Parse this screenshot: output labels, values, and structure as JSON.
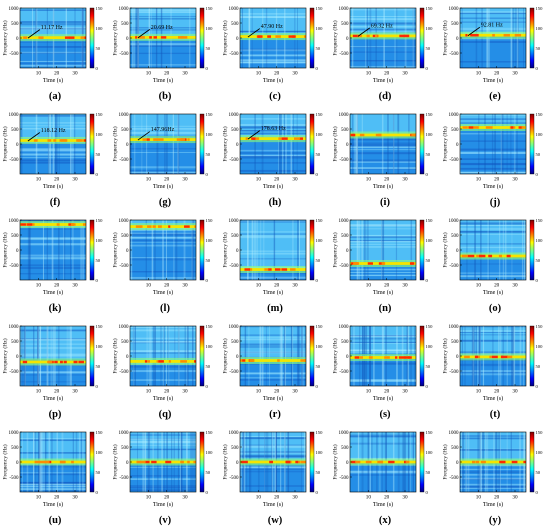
{
  "chart_data": {
    "type": "heatmap",
    "layout": "5x5 grid of spectrograms",
    "shared": {
      "xlabel": "Time (s)",
      "ylabel": "Frequency (Hz)",
      "x_ticks": [
        10,
        20,
        30
      ],
      "xlim": [
        0,
        36
      ],
      "y_ticks": [
        1000,
        500,
        0,
        -500
      ],
      "ylim": [
        -1000,
        1000
      ],
      "colorbar_ticks": [
        150,
        100,
        50,
        0
      ],
      "colorbar_range": [
        0,
        150
      ],
      "colormap": [
        "#00007f",
        "#0000ff",
        "#0080ff",
        "#00ffff",
        "#80ff80",
        "#ffff00",
        "#ff8000",
        "#ff0000",
        "#7f0000"
      ]
    },
    "panels": [
      {
        "label": "(a)",
        "band_hz": 11.17,
        "annotation": "11.17 Hz"
      },
      {
        "label": "(b)",
        "band_hz": 20.69,
        "annotation": "20.69 Hz"
      },
      {
        "label": "(c)",
        "band_hz": 47.9,
        "annotation": "47.90 Hz"
      },
      {
        "label": "(d)",
        "band_hz": 69.32,
        "annotation": "69.32 Hz"
      },
      {
        "label": "(e)",
        "band_hz": 92.81,
        "annotation": "92.81 Hz"
      },
      {
        "label": "(f)",
        "band_hz": 118.12,
        "annotation": "118.12 Hz"
      },
      {
        "label": "(g)",
        "band_hz": 147.96,
        "annotation": "147.96Hz"
      },
      {
        "label": "(h)",
        "band_hz": 178.63,
        "annotation": "178.63 Hz"
      },
      {
        "label": "(i)",
        "band_hz": 300,
        "annotation": ""
      },
      {
        "label": "(j)",
        "band_hz": 550,
        "annotation": ""
      },
      {
        "label": "(k)",
        "band_hz": 850,
        "annotation": ""
      },
      {
        "label": "(l)",
        "band_hz": 780,
        "annotation": ""
      },
      {
        "label": "(m)",
        "band_hz": -650,
        "annotation": ""
      },
      {
        "label": "(n)",
        "band_hz": -450,
        "annotation": ""
      },
      {
        "label": "(o)",
        "band_hz": -200,
        "annotation": ""
      },
      {
        "label": "(p)",
        "band_hz": -200,
        "annotation": ""
      },
      {
        "label": "(q)",
        "band_hz": -180,
        "annotation": ""
      },
      {
        "label": "(r)",
        "band_hz": -150,
        "annotation": ""
      },
      {
        "label": "(s)",
        "band_hz": -50,
        "annotation": ""
      },
      {
        "label": "(t)",
        "band_hz": -30,
        "annotation": ""
      },
      {
        "label": "(u)",
        "band_hz": 0,
        "annotation": ""
      },
      {
        "label": "(v)",
        "band_hz": 0,
        "annotation": ""
      },
      {
        "label": "(w)",
        "band_hz": 0,
        "annotation": ""
      },
      {
        "label": "(x)",
        "band_hz": 0,
        "annotation": ""
      },
      {
        "label": "(y)",
        "band_hz": 0,
        "annotation": ""
      }
    ]
  }
}
